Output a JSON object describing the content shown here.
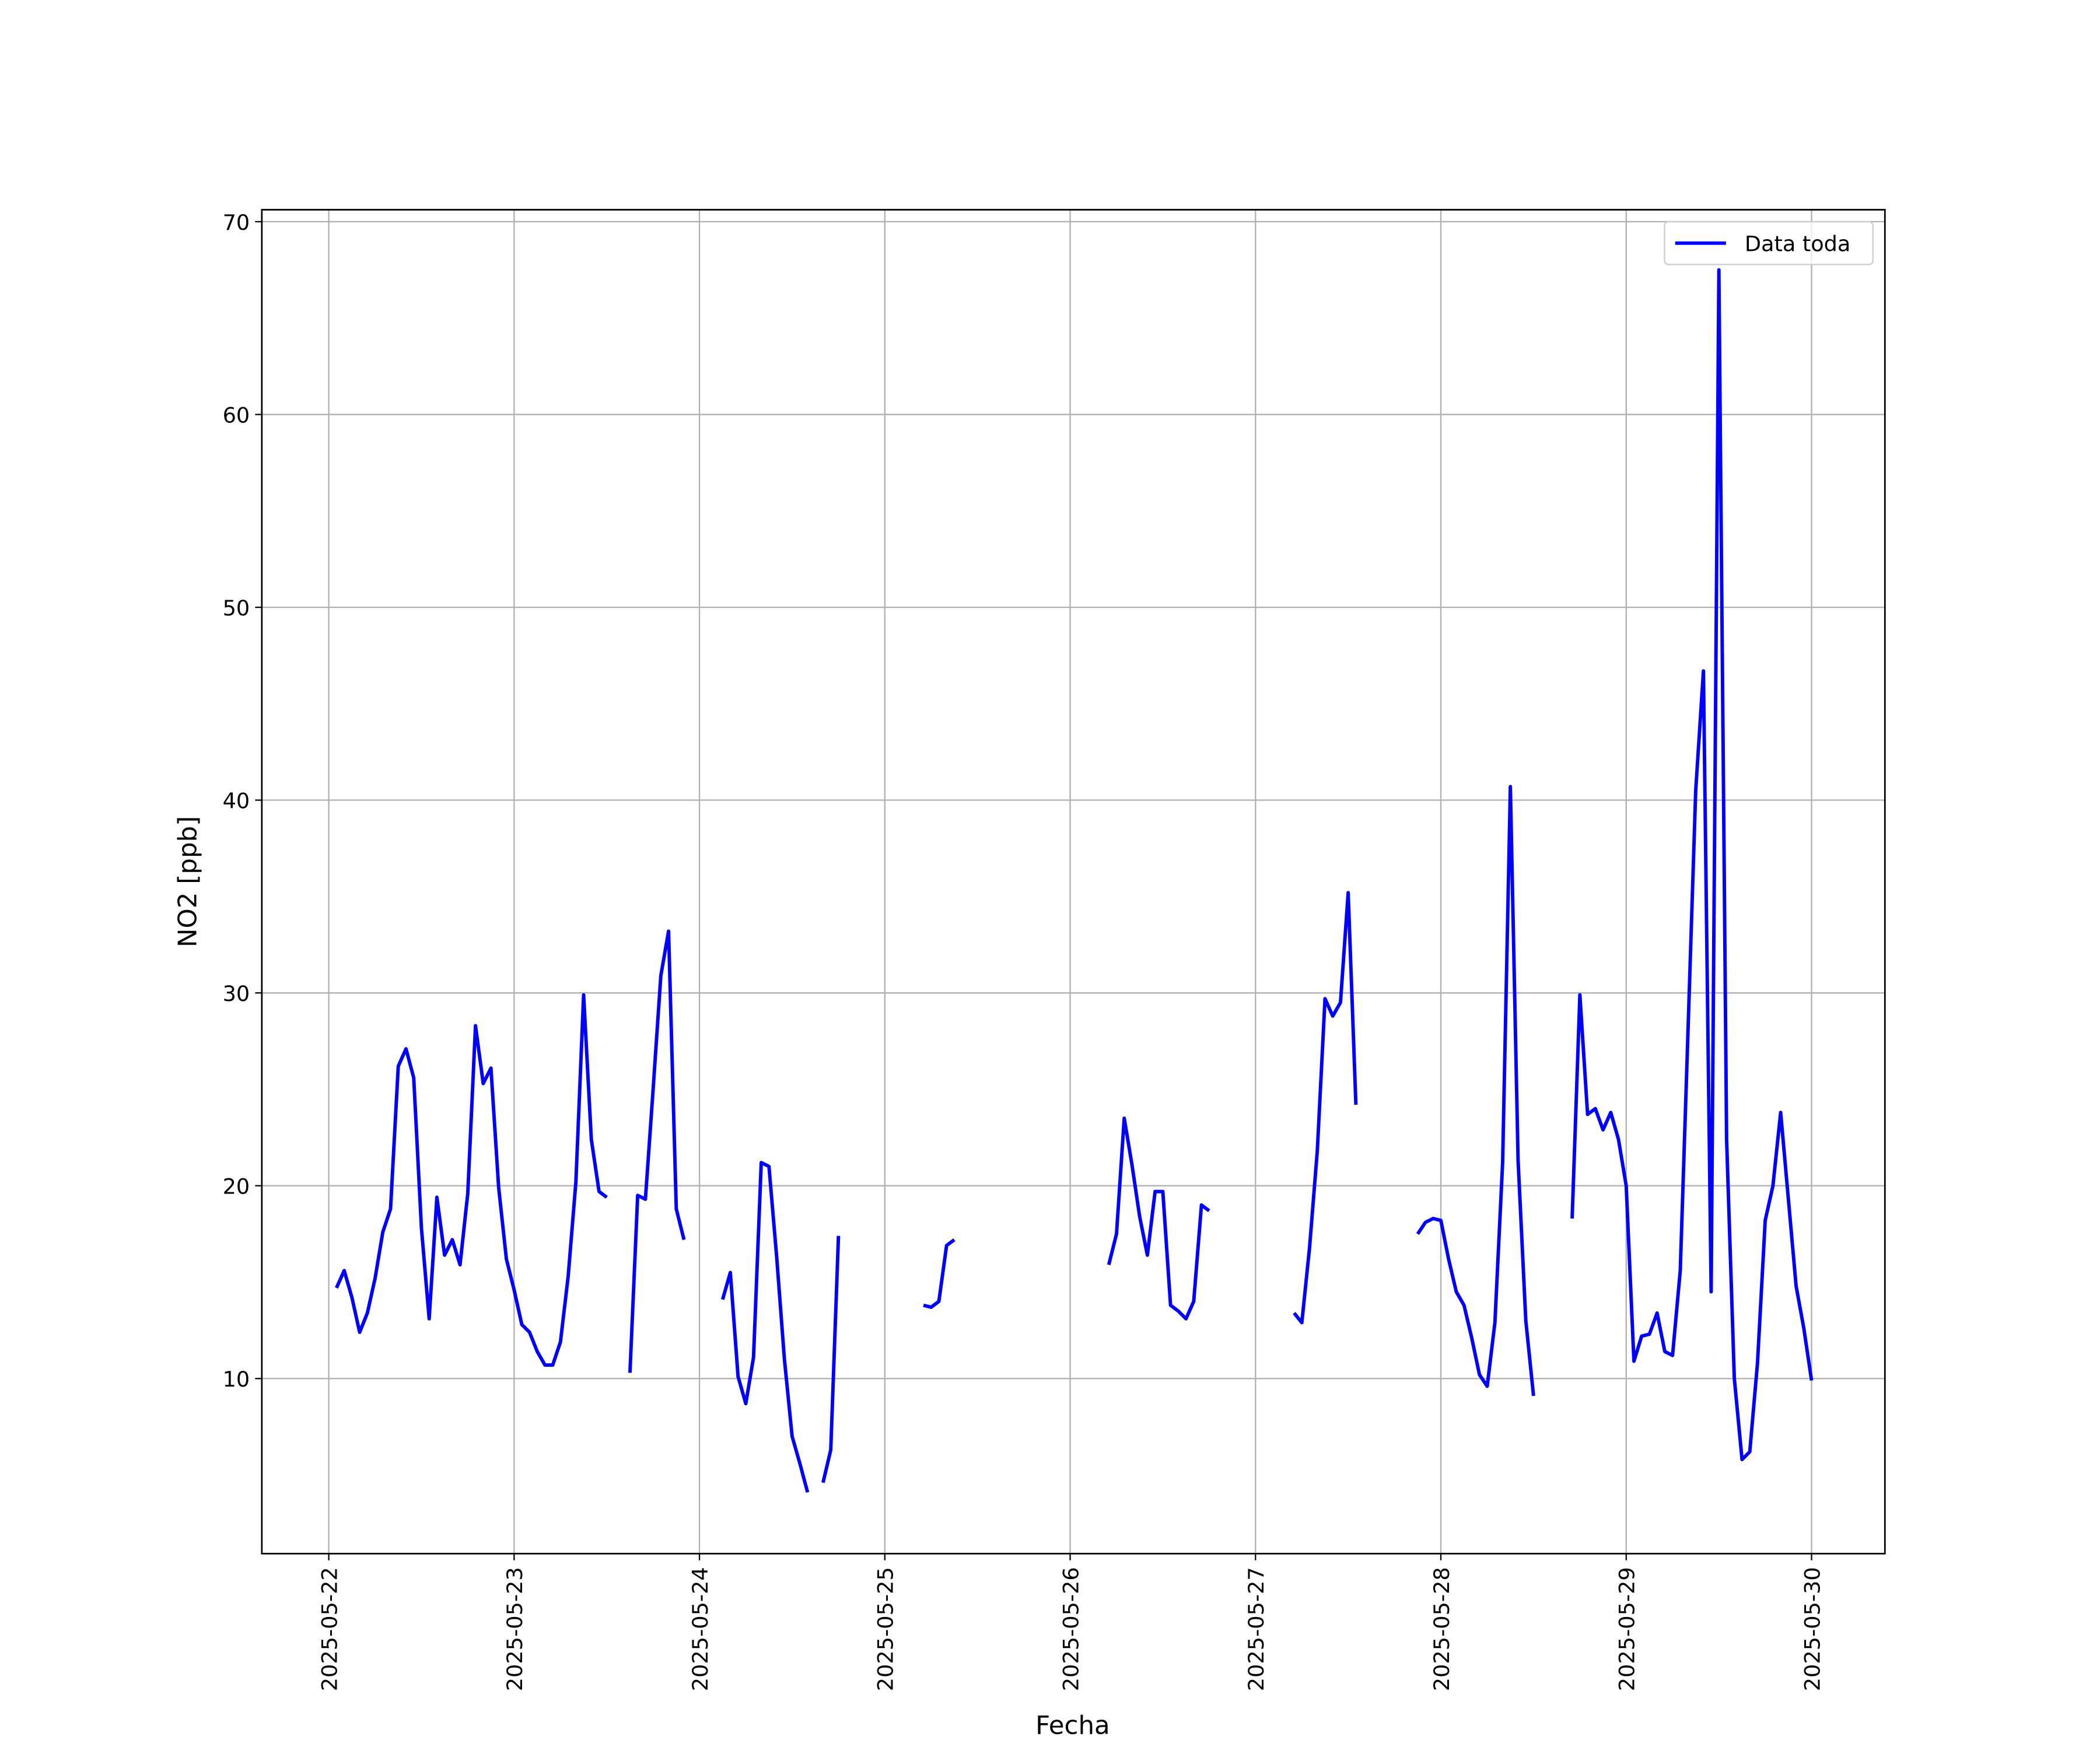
{
  "chart_data": {
    "type": "line",
    "xlabel": "Fecha",
    "ylabel": "NO2 [ppb]",
    "x": [
      "2025-05-22T01:00",
      "2025-05-22T02:00",
      "2025-05-22T03:00",
      "2025-05-22T04:00",
      "2025-05-22T05:00",
      "2025-05-22T06:00",
      "2025-05-22T07:00",
      "2025-05-22T08:00",
      "2025-05-22T09:00",
      "2025-05-22T10:00",
      "2025-05-22T11:00",
      "2025-05-22T12:00",
      "2025-05-22T13:00",
      "2025-05-22T14:00",
      "2025-05-22T15:00",
      "2025-05-22T16:00",
      "2025-05-22T17:00",
      "2025-05-22T18:00",
      "2025-05-22T19:00",
      "2025-05-22T20:00",
      "2025-05-22T21:00",
      "2025-05-22T22:00",
      "2025-05-22T23:00",
      "2025-05-23T00:00",
      "2025-05-23T01:00",
      "2025-05-23T02:00",
      "2025-05-23T03:00",
      "2025-05-23T04:00",
      "2025-05-23T05:00",
      "2025-05-23T06:00",
      "2025-05-23T07:00",
      "2025-05-23T08:00",
      "2025-05-23T09:00",
      "2025-05-23T10:00",
      "2025-05-23T11:00",
      "2025-05-23T12:00",
      "2025-05-23T13:00",
      "2025-05-23T15:00",
      "2025-05-23T16:00",
      "2025-05-23T17:00",
      "2025-05-23T18:00",
      "2025-05-23T19:00",
      "2025-05-23T20:00",
      "2025-05-23T21:00",
      "2025-05-23T22:00",
      "2025-05-23T23:00",
      "2025-05-24T03:00",
      "2025-05-24T04:00",
      "2025-05-24T05:00",
      "2025-05-24T06:00",
      "2025-05-24T07:00",
      "2025-05-24T08:00",
      "2025-05-24T09:00",
      "2025-05-24T10:00",
      "2025-05-24T11:00",
      "2025-05-24T12:00",
      "2025-05-24T13:00",
      "2025-05-24T14:00",
      "2025-05-24T15:00",
      "2025-05-24T16:00",
      "2025-05-24T17:00",
      "2025-05-24T18:00",
      "2025-05-24T19:00",
      "2025-05-25T05:00",
      "2025-05-25T06:00",
      "2025-05-25T07:00",
      "2025-05-25T08:00",
      "2025-05-25T09:00",
      "2025-05-25T10:00",
      "2025-05-26T05:00",
      "2025-05-26T06:00",
      "2025-05-26T07:00",
      "2025-05-26T08:00",
      "2025-05-26T09:00",
      "2025-05-26T10:00",
      "2025-05-26T11:00",
      "2025-05-26T12:00",
      "2025-05-26T13:00",
      "2025-05-26T14:00",
      "2025-05-26T15:00",
      "2025-05-26T16:00",
      "2025-05-26T17:00",
      "2025-05-26T18:00",
      "2025-05-26T19:00",
      "2025-05-27T05:00",
      "2025-05-27T06:00",
      "2025-05-27T07:00",
      "2025-05-27T08:00",
      "2025-05-27T09:00",
      "2025-05-27T10:00",
      "2025-05-27T11:00",
      "2025-05-27T12:00",
      "2025-05-27T13:00",
      "2025-05-27T14:00",
      "2025-05-27T21:00",
      "2025-05-27T22:00",
      "2025-05-27T23:00",
      "2025-05-28T00:00",
      "2025-05-28T01:00",
      "2025-05-28T02:00",
      "2025-05-28T03:00",
      "2025-05-28T04:00",
      "2025-05-28T05:00",
      "2025-05-28T06:00",
      "2025-05-28T07:00",
      "2025-05-28T08:00",
      "2025-05-28T09:00",
      "2025-05-28T10:00",
      "2025-05-28T11:00",
      "2025-05-28T12:00",
      "2025-05-28T13:00",
      "2025-05-28T17:00",
      "2025-05-28T18:00",
      "2025-05-28T19:00",
      "2025-05-28T20:00",
      "2025-05-28T21:00",
      "2025-05-28T22:00",
      "2025-05-28T23:00",
      "2025-05-29T00:00",
      "2025-05-29T01:00",
      "2025-05-29T02:00",
      "2025-05-29T03:00",
      "2025-05-29T04:00",
      "2025-05-29T05:00",
      "2025-05-29T06:00",
      "2025-05-29T07:00",
      "2025-05-29T08:00",
      "2025-05-29T09:00",
      "2025-05-29T10:00",
      "2025-05-29T11:00",
      "2025-05-29T12:00",
      "2025-05-29T13:00",
      "2025-05-29T14:00",
      "2025-05-29T15:00",
      "2025-05-29T16:00",
      "2025-05-29T17:00",
      "2025-05-29T18:00",
      "2025-05-29T19:00",
      "2025-05-29T20:00",
      "2025-05-29T21:00",
      "2025-05-29T22:00",
      "2025-05-29T23:00",
      "2025-05-30T00:00"
    ],
    "series": [
      {
        "name": "Data toda",
        "color": "#0000ff",
        "values": [
          14.7,
          15.6,
          14.2,
          12.4,
          13.4,
          15.2,
          17.6,
          18.8,
          26.2,
          27.1,
          25.6,
          17.8,
          13.1,
          19.4,
          16.4,
          17.2,
          15.9,
          19.6,
          28.3,
          25.3,
          26.1,
          19.9,
          16.2,
          14.6,
          12.8,
          12.4,
          11.4,
          10.7,
          10.7,
          11.9,
          15.3,
          20.2,
          29.9,
          22.4,
          19.7,
          19.4,
          null,
          10.3,
          19.5,
          19.3,
          25.0,
          30.9,
          33.2,
          18.8,
          17.2,
          null,
          14.1,
          15.5,
          10.1,
          8.7,
          11.1,
          21.2,
          21.0,
          16.3,
          11.0,
          7.0,
          5.6,
          4.1,
          null,
          4.6,
          6.3,
          17.4,
          null,
          13.8,
          13.7,
          14.0,
          16.9,
          17.2,
          null,
          15.9,
          17.5,
          23.5,
          21.1,
          18.4,
          16.4,
          19.7,
          19.7,
          13.8,
          13.5,
          13.1,
          14.0,
          19.0,
          18.7,
          null,
          13.4,
          12.9,
          16.8,
          21.8,
          29.7,
          28.8,
          29.5,
          35.2,
          24.2,
          null,
          17.5,
          18.1,
          18.3,
          18.2,
          16.2,
          14.5,
          13.8,
          12.1,
          10.2,
          9.6,
          12.9,
          21.2,
          40.7,
          21.3,
          13.0,
          9.1,
          null,
          18.3,
          29.9,
          23.7,
          24.0,
          22.9,
          23.8,
          22.4,
          20.0,
          10.9,
          12.2,
          12.3,
          13.4,
          11.4,
          11.2,
          15.6,
          28.0,
          40.5,
          46.7,
          14.5,
          67.5,
          22.4,
          10.0,
          5.8,
          6.2,
          10.8,
          18.2,
          20.0,
          23.8,
          19.3,
          14.8,
          12.6,
          9.9
        ]
      }
    ],
    "xlim": [
      "2025-05-21T15:20",
      "2025-05-30T09:30"
    ],
    "xticks": [
      "2025-05-22",
      "2025-05-23",
      "2025-05-24",
      "2025-05-25",
      "2025-05-26",
      "2025-05-27",
      "2025-05-28",
      "2025-05-29",
      "2025-05-30"
    ],
    "ylim": [
      0.92,
      70.62
    ],
    "yticks": [
      10,
      20,
      30,
      40,
      50,
      60,
      70
    ],
    "grid": true,
    "legend": "upper right"
  }
}
